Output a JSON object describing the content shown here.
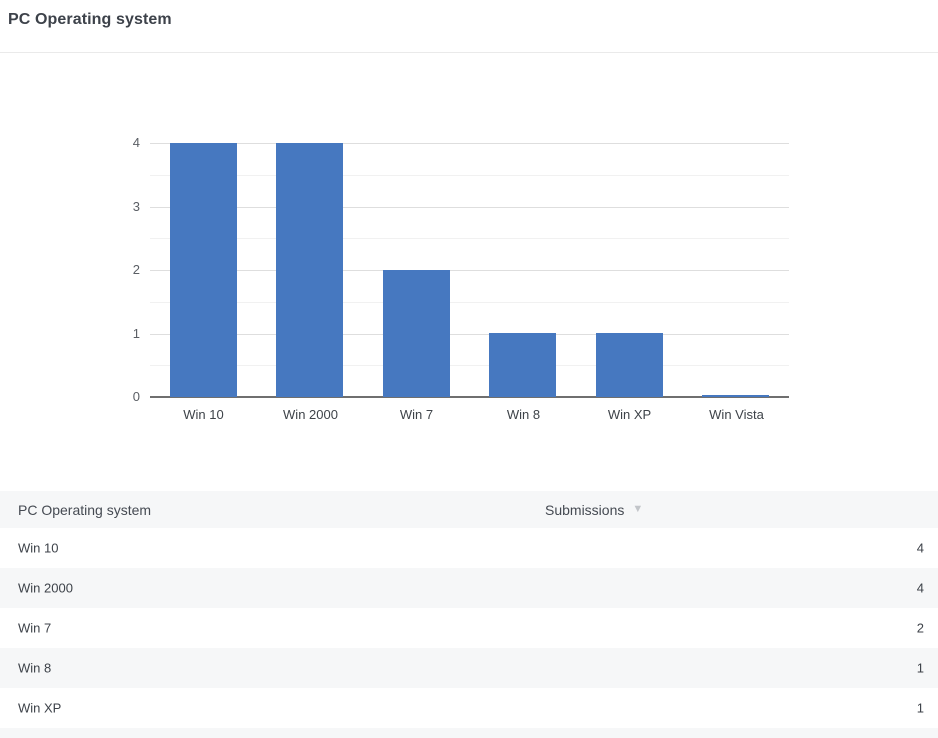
{
  "page": {
    "title": "PC Operating system"
  },
  "chart_data": {
    "type": "bar",
    "title": "PC Operating system",
    "categories": [
      "Win 10",
      "Win 2000",
      "Win 7",
      "Win 8",
      "Win XP",
      "Win Vista"
    ],
    "values": [
      4,
      4,
      2,
      1,
      1,
      0
    ],
    "xlabel": "",
    "ylabel": "",
    "ylim": [
      0,
      4
    ],
    "yticks": [
      0,
      1,
      2,
      3,
      4
    ],
    "grid": true,
    "minor_gridline_step": 0.5,
    "legend": false,
    "bar_color": "#4678c0"
  },
  "table": {
    "header": {
      "col1": "PC Operating system",
      "col2": "Submissions",
      "sort_icon": "▼",
      "sort_direction": "descending"
    },
    "rows": [
      {
        "os": "Win 10",
        "submissions": "4"
      },
      {
        "os": "Win 2000",
        "submissions": "4"
      },
      {
        "os": "Win 7",
        "submissions": "2"
      },
      {
        "os": "Win 8",
        "submissions": "1"
      },
      {
        "os": "Win XP",
        "submissions": "1"
      }
    ],
    "partial_next_row_visible": true
  },
  "colors": {
    "bar": "#4678c0",
    "title_text": "#3d424a",
    "axis_text": "#5a5e64",
    "category_text": "#3e4349",
    "gridline_major": "#dedede",
    "gridline_minor": "#f1f1f1",
    "axis_line": "#6f6f6f",
    "header_bg": "#f6f7f8",
    "stripe_bg": "#f6f7f8",
    "row_text": "#3d4249",
    "sort_icon": "#c2c5c9",
    "divider": "#eaeaea"
  }
}
